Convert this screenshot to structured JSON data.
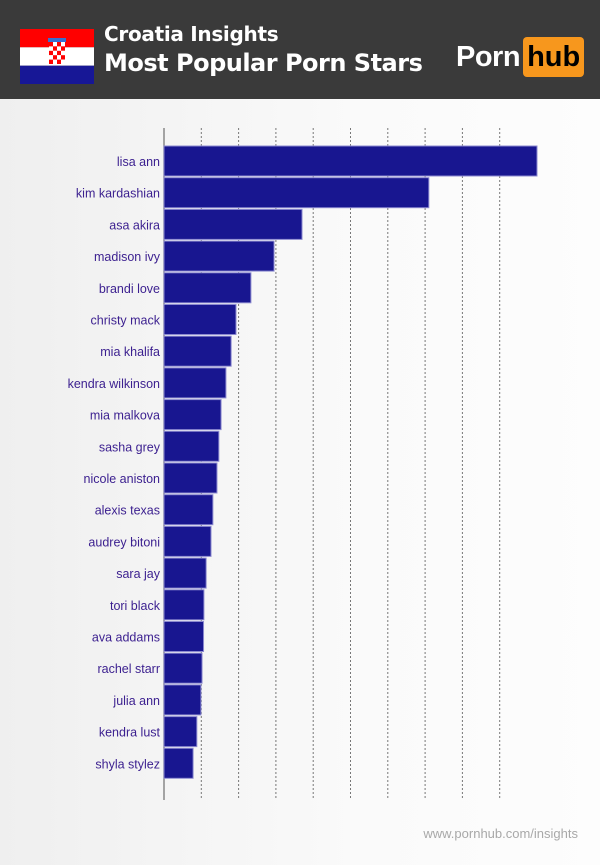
{
  "header": {
    "title": "Croatia Insights",
    "subtitle": "Most Popular Porn Stars",
    "logo": {
      "left": "Porn",
      "right": "hub"
    },
    "flag": "croatia-flag"
  },
  "footer": {
    "url": "www.pornhub.com/insights"
  },
  "colors": {
    "bar": "#181690",
    "label": "#3b1f8f",
    "header_bg": "#3a3a3a",
    "logo_accent": "#f7971d"
  },
  "chart_data": {
    "type": "bar",
    "orientation": "horizontal",
    "title": "Most Popular Porn Stars",
    "xlabel": "",
    "ylabel": "",
    "xlim": [
      0,
      110
    ],
    "grid": true,
    "categories": [
      "lisa ann",
      "kim kardashian",
      "asa akira",
      "madison ivy",
      "brandi love",
      "christy mack",
      "mia khalifa",
      "kendra wilkinson",
      "mia malkova",
      "sasha grey",
      "nicole aniston",
      "alexis texas",
      "audrey bitoni",
      "sara jay",
      "tori black",
      "ava addams",
      "rachel starr",
      "julia ann",
      "kendra lust",
      "shyla stylez"
    ],
    "values": [
      100,
      71,
      37,
      29.5,
      23.3,
      19.3,
      18,
      16.6,
      15.3,
      14.7,
      14.2,
      13.1,
      12.6,
      11.3,
      10.7,
      10.6,
      10.2,
      9.9,
      8.8,
      7.8
    ]
  }
}
